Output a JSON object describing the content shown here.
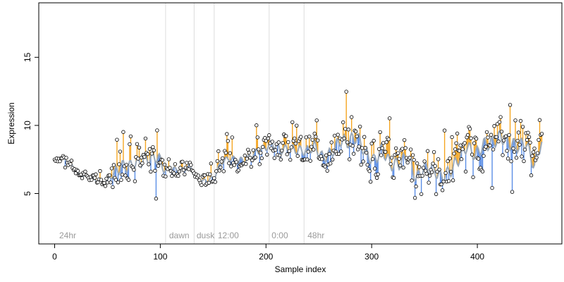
{
  "chart_data": {
    "type": "scatter",
    "title": "",
    "xlabel": "Sample index",
    "ylabel": "Expression",
    "xlim": [
      -15,
      480
    ],
    "ylim": [
      1.3,
      19.0
    ],
    "x_ticks": [
      0,
      100,
      200,
      300,
      400
    ],
    "y_ticks": [
      5,
      10,
      15
    ],
    "grid": false,
    "legend": "none",
    "colors": {
      "above": "#f5a623",
      "below": "#5b8ee6",
      "fit": "#9aa8b8",
      "point_edge": "#000000",
      "vline": "#dcdcdc",
      "annotation": "#9a9a9a"
    },
    "annotations": [
      {
        "x": 3,
        "label": "24hr"
      },
      {
        "x": 107,
        "label": "dawn"
      },
      {
        "x": 133,
        "label": "dusk"
      },
      {
        "x": 153,
        "label": "12:00"
      },
      {
        "x": 204,
        "label": "0:00"
      },
      {
        "x": 238,
        "label": "48hr"
      }
    ],
    "vlines": [
      105,
      132,
      151,
      203,
      236
    ],
    "anchors": [
      [
        0,
        7.5
      ],
      [
        8,
        7.6
      ],
      [
        15,
        7.2
      ],
      [
        22,
        6.4
      ],
      [
        30,
        6.3
      ],
      [
        38,
        6.0
      ],
      [
        48,
        5.8
      ],
      [
        55,
        6.4
      ],
      [
        63,
        7.0
      ],
      [
        72,
        7.0
      ],
      [
        80,
        7.3
      ],
      [
        90,
        7.6
      ],
      [
        98,
        7.7
      ],
      [
        104,
        6.7
      ],
      [
        112,
        6.8
      ],
      [
        120,
        6.7
      ],
      [
        128,
        7.0
      ],
      [
        134,
        6.2
      ],
      [
        140,
        5.9
      ],
      [
        150,
        6.1
      ],
      [
        158,
        7.3
      ],
      [
        166,
        7.6
      ],
      [
        174,
        7.4
      ],
      [
        182,
        7.5
      ],
      [
        190,
        8.0
      ],
      [
        198,
        8.3
      ],
      [
        206,
        8.7
      ],
      [
        214,
        8.2
      ],
      [
        222,
        8.3
      ],
      [
        230,
        8.2
      ],
      [
        238,
        8.1
      ],
      [
        246,
        8.5
      ],
      [
        254,
        7.6
      ],
      [
        262,
        8.0
      ],
      [
        270,
        8.9
      ],
      [
        278,
        8.8
      ],
      [
        286,
        9.2
      ],
      [
        294,
        8.0
      ],
      [
        302,
        7.4
      ],
      [
        310,
        8.3
      ],
      [
        318,
        7.1
      ],
      [
        326,
        7.2
      ],
      [
        334,
        7.8
      ],
      [
        342,
        6.1
      ],
      [
        350,
        6.9
      ],
      [
        358,
        6.8
      ],
      [
        366,
        6.2
      ],
      [
        374,
        6.6
      ],
      [
        382,
        7.5
      ],
      [
        390,
        8.5
      ],
      [
        398,
        7.8
      ],
      [
        406,
        8.6
      ],
      [
        414,
        8.7
      ],
      [
        422,
        9.2
      ],
      [
        430,
        8.7
      ],
      [
        438,
        8.5
      ],
      [
        446,
        8.7
      ],
      [
        454,
        7.0
      ],
      [
        460,
        8.7
      ]
    ],
    "n_points": 462,
    "amplitude_profile": [
      [
        0,
        0.25
      ],
      [
        50,
        0.25
      ],
      [
        60,
        1.3
      ],
      [
        100,
        1.2
      ],
      [
        106,
        0.5
      ],
      [
        130,
        0.5
      ],
      [
        140,
        0.35
      ],
      [
        152,
        0.6
      ],
      [
        200,
        0.8
      ],
      [
        240,
        1.0
      ],
      [
        280,
        1.4
      ],
      [
        320,
        1.3
      ],
      [
        460,
        1.4
      ]
    ]
  }
}
